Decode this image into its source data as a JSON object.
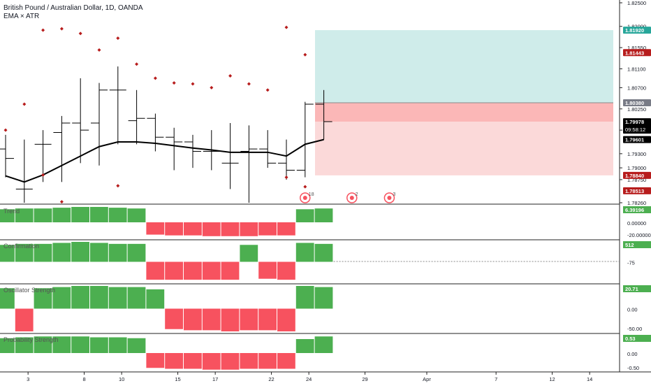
{
  "header": {
    "title": "British Pound / Australian Dollar, 1D, OANDA",
    "indicators": "EMA × ATR"
  },
  "colors": {
    "up": "#4caf50",
    "down": "#f7525f",
    "profit_zone": "#cfecea",
    "stop_zone": "#fbd9d9",
    "entry_zone": "#fbb7b7",
    "price_marker": "#000000",
    "target_marker": "#26a69a",
    "stop_marker": "#b71c1c",
    "dot": "#b71c1c"
  },
  "chart_data": [
    {
      "type": "ohlc",
      "name": "main",
      "ylim": [
        1.7826,
        1.825
      ],
      "y_ticks": [
        1.825,
        1.82,
        1.8155,
        1.811,
        1.807,
        1.8025,
        1.798,
        1.793,
        1.79,
        1.7875,
        1.7826
      ],
      "y_tick_labels": [
        "1.82500",
        "1.82000",
        "1.81550",
        "1.81100",
        "1.80700",
        "1.80250",
        "1.79800",
        "1.79300",
        "1.79000",
        "1.78750",
        "1.78260"
      ],
      "bars": [
        {
          "o": 1.794,
          "h": 1.797,
          "l": 1.788,
          "c": 1.792
        },
        {
          "o": 1.7855,
          "h": 1.796,
          "l": 1.7826,
          "c": 1.7855
        },
        {
          "o": 1.795,
          "h": 1.798,
          "l": 1.787,
          "c": 1.795
        },
        {
          "o": 1.7975,
          "h": 1.801,
          "l": 1.787,
          "c": 1.7995
        },
        {
          "o": 1.7995,
          "h": 1.809,
          "l": 1.791,
          "c": 1.798
        },
        {
          "o": 1.7995,
          "h": 1.808,
          "l": 1.7905,
          "c": 1.8065
        },
        {
          "o": 1.8065,
          "h": 1.8115,
          "l": 1.795,
          "c": 1.8065
        },
        {
          "o": 1.8,
          "h": 1.8065,
          "l": 1.795,
          "c": 1.8005
        },
        {
          "o": 1.8005,
          "h": 1.8015,
          "l": 1.7935,
          "c": 1.7965
        },
        {
          "o": 1.7965,
          "h": 1.7985,
          "l": 1.7895,
          "c": 1.7955
        },
        {
          "o": 1.7955,
          "h": 1.797,
          "l": 1.79,
          "c": 1.7935
        },
        {
          "o": 1.7935,
          "h": 1.798,
          "l": 1.7895,
          "c": 1.7935
        },
        {
          "o": 1.791,
          "h": 1.7995,
          "l": 1.7855,
          "c": 1.791
        },
        {
          "o": 1.7935,
          "h": 1.799,
          "l": 1.7826,
          "c": 1.794
        },
        {
          "o": 1.794,
          "h": 1.798,
          "l": 1.79,
          "c": 1.791
        },
        {
          "o": 1.791,
          "h": 1.796,
          "l": 1.7875,
          "c": 1.7895
        },
        {
          "o": 1.7895,
          "h": 1.804,
          "l": 1.788,
          "c": 1.8035
        },
        {
          "o": 1.8035,
          "h": 1.8065,
          "l": 1.796,
          "c": 1.7998
        }
      ],
      "ema": [
        1.7883,
        1.787,
        1.7885,
        1.7905,
        1.7925,
        1.7945,
        1.7955,
        1.7955,
        1.7952,
        1.7947,
        1.7942,
        1.7938,
        1.7933,
        1.7933,
        1.7933,
        1.7925,
        1.795,
        1.796
      ],
      "dots": [
        {
          "i": 0,
          "y": 1.798
        },
        {
          "i": 1,
          "y": 1.8035
        },
        {
          "i": 2,
          "y": 1.8192
        },
        {
          "i": 3,
          "y": 1.8195
        },
        {
          "i": 4,
          "y": 1.8185
        },
        {
          "i": 5,
          "y": 1.815
        },
        {
          "i": 6,
          "y": 1.8175
        },
        {
          "i": 7,
          "y": 1.812
        },
        {
          "i": 8,
          "y": 1.809
        },
        {
          "i": 9,
          "y": 1.808
        },
        {
          "i": 10,
          "y": 1.8078
        },
        {
          "i": 11,
          "y": 1.807
        },
        {
          "i": 12,
          "y": 1.8095
        },
        {
          "i": 13,
          "y": 1.8078
        },
        {
          "i": 14,
          "y": 1.8065
        },
        {
          "i": 15,
          "y": 1.8198
        },
        {
          "i": 16,
          "y": 1.814
        },
        {
          "i": 2,
          "y": 1.7885
        },
        {
          "i": 3,
          "y": 1.7828
        },
        {
          "i": 6,
          "y": 1.7862
        },
        {
          "i": 15,
          "y": 1.788
        },
        {
          "i": 16,
          "y": 1.786
        }
      ],
      "target": 1.8192,
      "entry": 1.8038,
      "stop": 1.7884,
      "current": 1.79978,
      "current_label": "1.79978",
      "current_countdown": "09:58:12",
      "ema_label": "1.79601",
      "target_label": "1.81920",
      "stop_price_label": "1.81443",
      "entry_label": "1.80380",
      "stop_label": "1.78840",
      "low_label": "1.78513",
      "events": [
        {
          "i": 16,
          "label": "18"
        },
        {
          "i": 18.5,
          "label": "2"
        },
        {
          "i": 20.5,
          "label": "3"
        }
      ]
    },
    {
      "type": "bar",
      "name": "Trend",
      "values": [
        0.85,
        0.9,
        0.9,
        0.95,
        1.0,
        1.0,
        0.95,
        0.9,
        -0.8,
        -0.85,
        -0.85,
        -0.9,
        -0.9,
        -0.9,
        -0.85,
        -0.85,
        0.85,
        0.9
      ],
      "ticks": [
        "0.00000",
        "-20.00000"
      ],
      "value_label": "6.39196"
    },
    {
      "type": "bar",
      "name": "Confirmation",
      "values": [
        0.85,
        0.9,
        0.9,
        0.95,
        1.0,
        0.95,
        0.9,
        0.9,
        -0.9,
        -0.9,
        -0.9,
        -0.9,
        -0.9,
        0.85,
        -0.85,
        -0.9,
        0.95,
        0.9
      ],
      "ticks": [
        "-75"
      ],
      "value_label": "512"
    },
    {
      "type": "bar",
      "name": "Oscillator Strength",
      "values": [
        0.9,
        -1.0,
        0.9,
        0.95,
        1.0,
        1.0,
        0.95,
        0.95,
        0.85,
        -0.9,
        -0.95,
        -0.95,
        -1.0,
        -0.95,
        -0.95,
        -1.0,
        1.0,
        0.95
      ],
      "ticks": [
        "0.00",
        "-50.00"
      ],
      "value_label": "20.71"
    },
    {
      "type": "bar",
      "name": "Probability Strength",
      "values": [
        0.85,
        0.9,
        0.95,
        0.95,
        0.95,
        0.9,
        0.9,
        0.85,
        -0.85,
        -0.9,
        -0.9,
        -0.95,
        -0.95,
        -0.9,
        -0.9,
        -0.9,
        0.8,
        0.95
      ],
      "ticks": [
        "0.00",
        "-0.50"
      ],
      "value_label": "0.53"
    }
  ],
  "x_axis": {
    "labels": [
      {
        "i": 1.2,
        "t": "3"
      },
      {
        "i": 4.2,
        "t": "8"
      },
      {
        "i": 6.2,
        "t": "10"
      },
      {
        "i": 9.2,
        "t": "15"
      },
      {
        "i": 11.2,
        "t": "17"
      },
      {
        "i": 14.2,
        "t": "22"
      },
      {
        "i": 16.2,
        "t": "24"
      },
      {
        "i": 19.2,
        "t": "29"
      },
      {
        "i": 22.5,
        "t": "Apr"
      },
      {
        "i": 26.2,
        "t": "7"
      },
      {
        "i": 29.2,
        "t": "12"
      },
      {
        "i": 31.2,
        "t": "14"
      }
    ]
  }
}
